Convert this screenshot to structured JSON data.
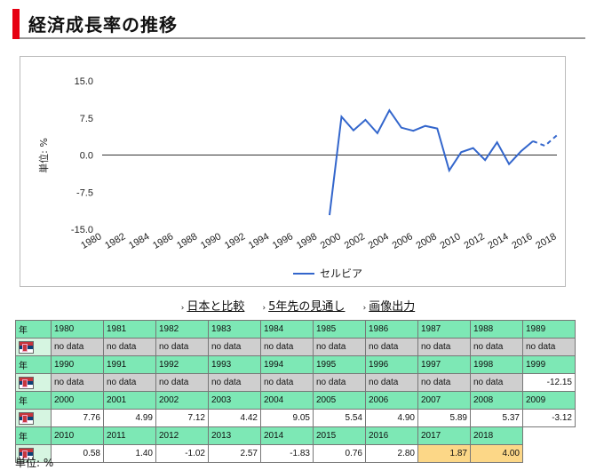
{
  "page": {
    "title": "経済成長率の推移",
    "unit_note": "単位: %"
  },
  "links": [
    "日本と比較",
    "5年先の見通し",
    "画像出力"
  ],
  "table": {
    "year_header": "年"
  },
  "chart_data": {
    "type": "line",
    "title": "",
    "xlabel": "",
    "ylabel": "単位: %",
    "ylim": [
      -15,
      15
    ],
    "yticks": [
      "15.0",
      "7.5",
      "0.0",
      "-7.5",
      "-15.0"
    ],
    "xticks": [
      "1980",
      "1982",
      "1984",
      "1986",
      "1988",
      "1990",
      "1992",
      "1994",
      "1996",
      "1998",
      "2000",
      "2002",
      "2004",
      "2006",
      "2008",
      "2010",
      "2012",
      "2014",
      "2016",
      "2018"
    ],
    "xlim": [
      1980,
      2018
    ],
    "x": [
      1980,
      1981,
      1982,
      1983,
      1984,
      1985,
      1986,
      1987,
      1988,
      1989,
      1990,
      1991,
      1992,
      1993,
      1994,
      1995,
      1996,
      1997,
      1998,
      1999,
      2000,
      2001,
      2002,
      2003,
      2004,
      2005,
      2006,
      2007,
      2008,
      2009,
      2010,
      2011,
      2012,
      2013,
      2014,
      2015,
      2016,
      2017,
      2018
    ],
    "series": [
      {
        "name": "セルビア",
        "color": "#3366cc",
        "values": [
          null,
          null,
          null,
          null,
          null,
          null,
          null,
          null,
          null,
          null,
          null,
          null,
          null,
          null,
          null,
          null,
          null,
          null,
          null,
          -12.15,
          7.76,
          4.99,
          7.12,
          4.42,
          9.05,
          5.54,
          4.9,
          5.89,
          5.37,
          -3.12,
          0.58,
          1.4,
          -1.02,
          2.57,
          -1.83,
          0.76,
          2.8,
          1.87,
          4.0
        ],
        "display": [
          "no data",
          "no data",
          "no data",
          "no data",
          "no data",
          "no data",
          "no data",
          "no data",
          "no data",
          "no data",
          "no data",
          "no data",
          "no data",
          "no data",
          "no data",
          "no data",
          "no data",
          "no data",
          "no data",
          "-12.15",
          "7.76",
          "4.99",
          "7.12",
          "4.42",
          "9.05",
          "5.54",
          "4.90",
          "5.89",
          "5.37",
          "-3.12",
          "0.58",
          "1.40",
          "-1.02",
          "2.57",
          "-1.83",
          "0.76",
          "2.80",
          "1.87",
          "4.00"
        ],
        "forecast_from": 2017
      }
    ],
    "legend_position": "bottom",
    "grid": false
  }
}
